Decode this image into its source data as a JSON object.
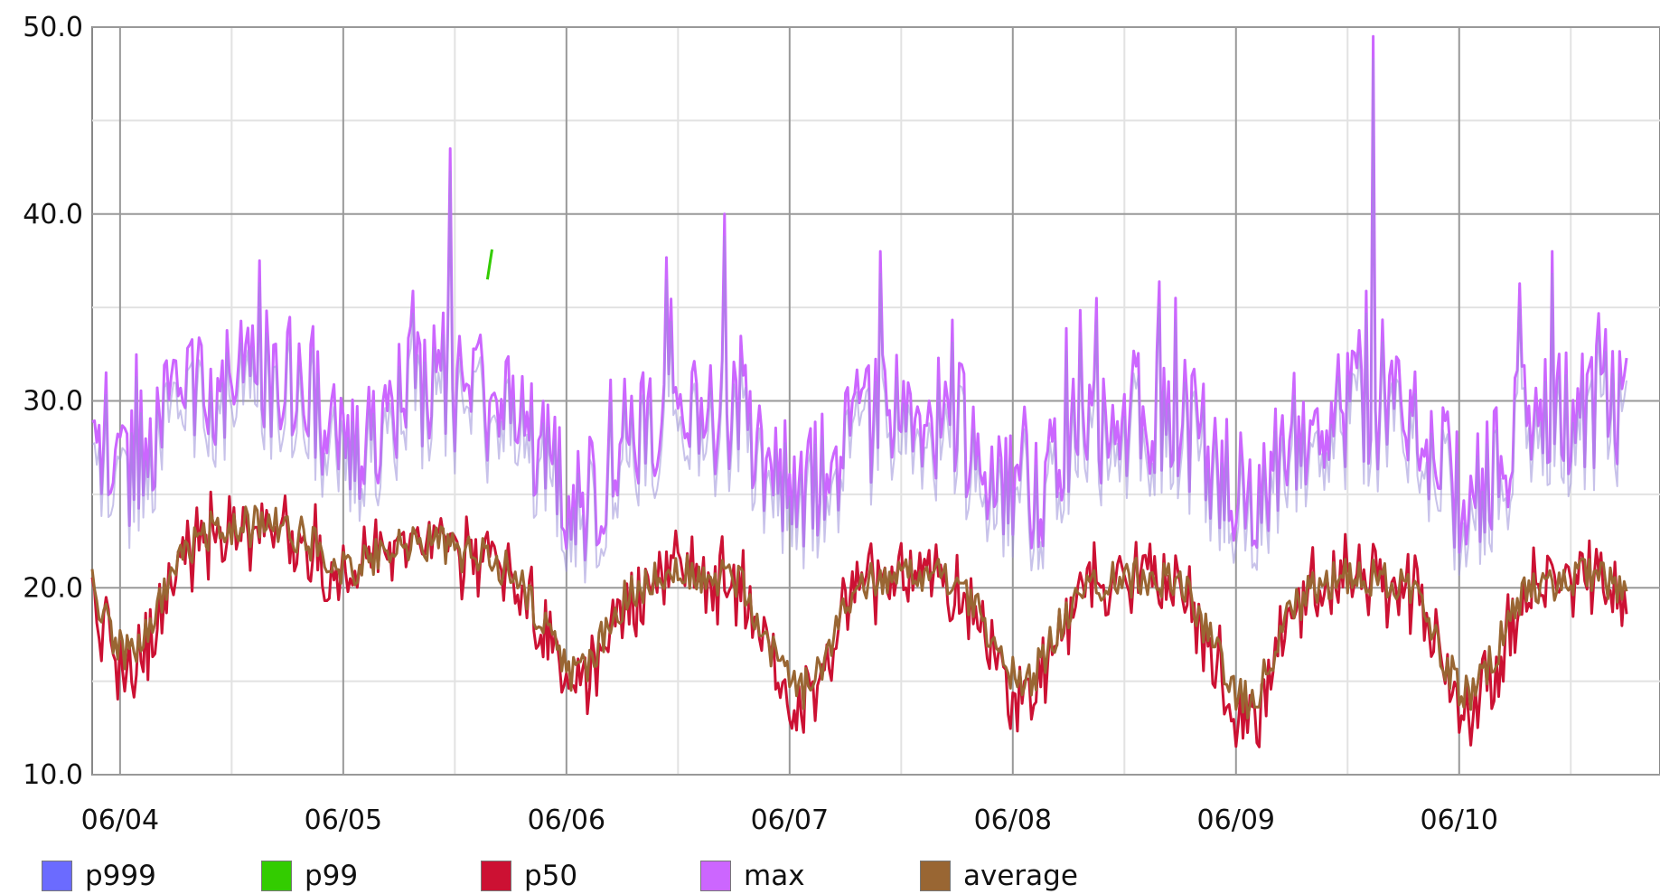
{
  "chart_data": {
    "type": "line",
    "x": [
      "06/04",
      "06/05",
      "06/06",
      "06/07",
      "06/08",
      "06/09",
      "06/10"
    ],
    "x_start": "06/03 21:00",
    "x_end": "06/10 18:00",
    "ylim": [
      10.0,
      50.0
    ],
    "yticks": [
      "10.0",
      "20.0",
      "30.0",
      "40.0",
      "50.0"
    ],
    "grid": true,
    "legend_position": "bottom",
    "series": [
      {
        "name": "p999",
        "color": "#6b6bff",
        "note_hidden_behind_max": true
      },
      {
        "name": "p99",
        "color": "#33cc00"
      },
      {
        "name": "p50",
        "color": "#cc1133"
      },
      {
        "name": "max",
        "color": "#cc66ff"
      },
      {
        "name": "average",
        "color": "#996633"
      }
    ],
    "daily_profile": {
      "days": [
        "06/04",
        "06/05",
        "06/06",
        "06/07",
        "06/08",
        "06/09",
        "06/10"
      ],
      "max_typical": [
        30.5,
        32.0,
        29.0,
        29.5,
        29.0,
        29.5,
        29.5
      ],
      "max_peak": [
        37.5,
        43.5,
        40.0,
        38.0,
        35.5,
        49.5,
        38.0
      ],
      "average_typical": [
        23.0,
        23.5,
        20.5,
        21.0,
        20.5,
        20.5,
        20.5
      ],
      "p50_typical": [
        23.0,
        23.5,
        20.5,
        21.0,
        20.5,
        21.0,
        20.5
      ],
      "trough_min_average": [
        16.5,
        21.0,
        15.5,
        14.5,
        15.0,
        14.0,
        14.5
      ]
    }
  }
}
